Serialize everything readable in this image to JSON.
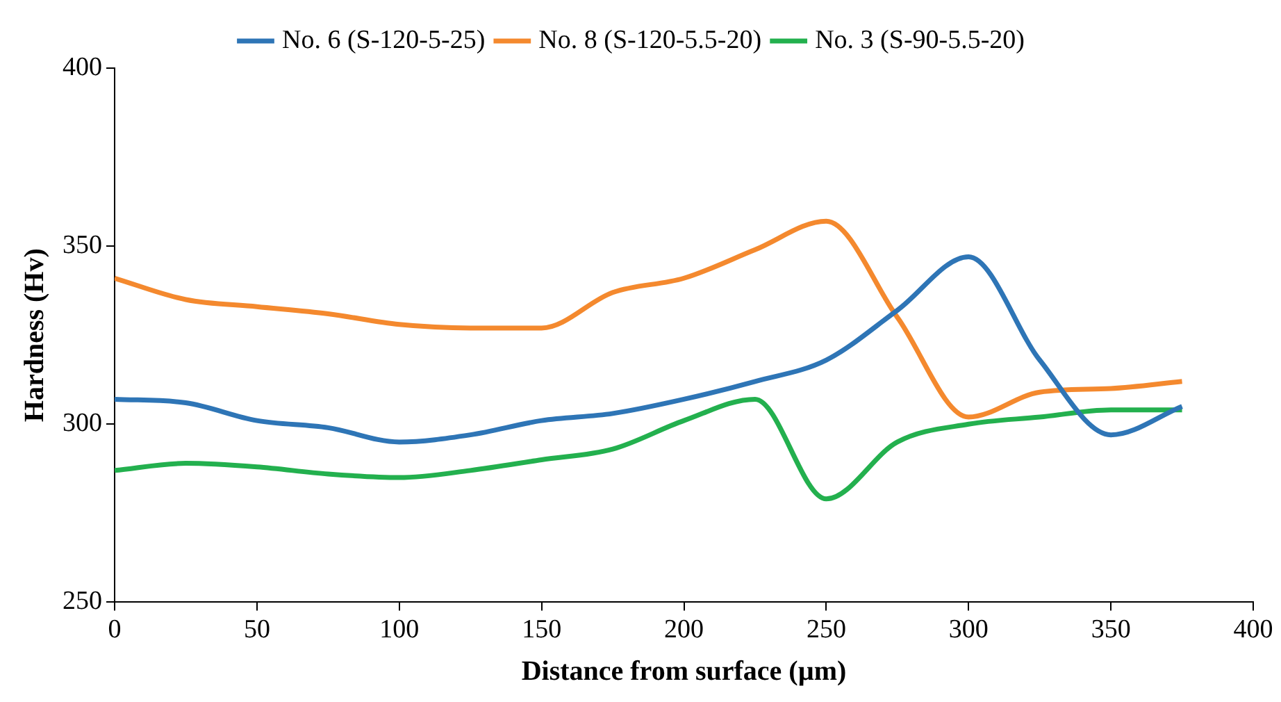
{
  "chart_data": {
    "type": "line",
    "xlabel": "Distance from surface (µm)",
    "ylabel": "Hardness (Hv)",
    "x": [
      0,
      25,
      50,
      75,
      100,
      125,
      150,
      175,
      200,
      225,
      250,
      275,
      300,
      325,
      350,
      375
    ],
    "series": [
      {
        "name": "No. 6 (S-120-5-25)",
        "color": "#2e75b6",
        "values": [
          307,
          306,
          301,
          299,
          295,
          297,
          301,
          303,
          307,
          312,
          318,
          332,
          347,
          318,
          297,
          305
        ]
      },
      {
        "name": "No. 8 (S-120-5.5-20)",
        "color": "#f4892e",
        "values": [
          341,
          335,
          333,
          331,
          328,
          327,
          327,
          337,
          341,
          349,
          357,
          330,
          302,
          309,
          310,
          312
        ]
      },
      {
        "name": "No. 3 (S-90-5.5-20)",
        "color": "#23b04e",
        "values": [
          287,
          289,
          288,
          286,
          285,
          287,
          290,
          293,
          301,
          307,
          279,
          295,
          300,
          302,
          304,
          304
        ]
      }
    ],
    "xlim": [
      0,
      400
    ],
    "xticks": [
      0,
      50,
      100,
      150,
      200,
      250,
      300,
      350,
      400
    ],
    "ylim": [
      250,
      400
    ],
    "yticks": [
      250,
      300,
      350,
      400
    ],
    "grid": false,
    "legend": "top",
    "marker": "none",
    "line_style": "solid"
  }
}
